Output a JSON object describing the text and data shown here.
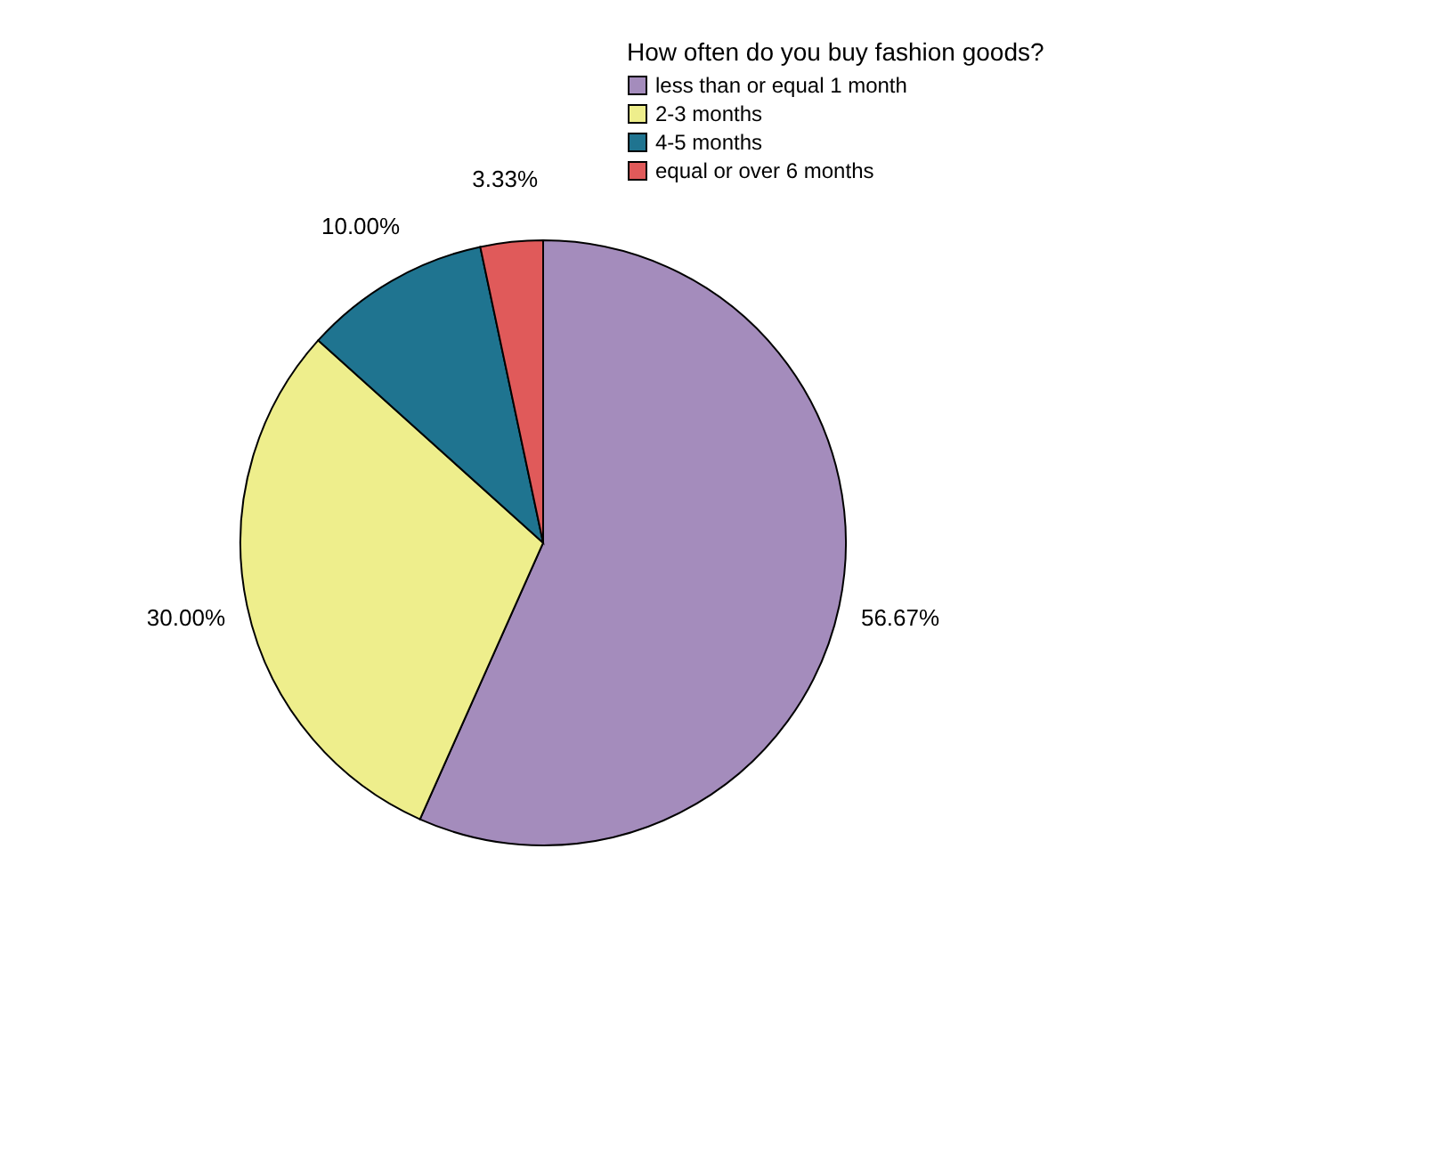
{
  "chart_data": {
    "type": "pie",
    "legend_title": "How often do you buy fashion goods?",
    "categories": [
      "less than or equal 1 month",
      "2-3 months",
      "4-5 months",
      "equal or over 6 months"
    ],
    "values": [
      56.67,
      30.0,
      10.0,
      3.33
    ],
    "value_labels": [
      "56.67%",
      "30.00%",
      "10.00%",
      "3.33%"
    ],
    "colors": [
      "#a48cbc",
      "#eeee8c",
      "#1f7490",
      "#e05a5a"
    ],
    "legend": "top right"
  }
}
